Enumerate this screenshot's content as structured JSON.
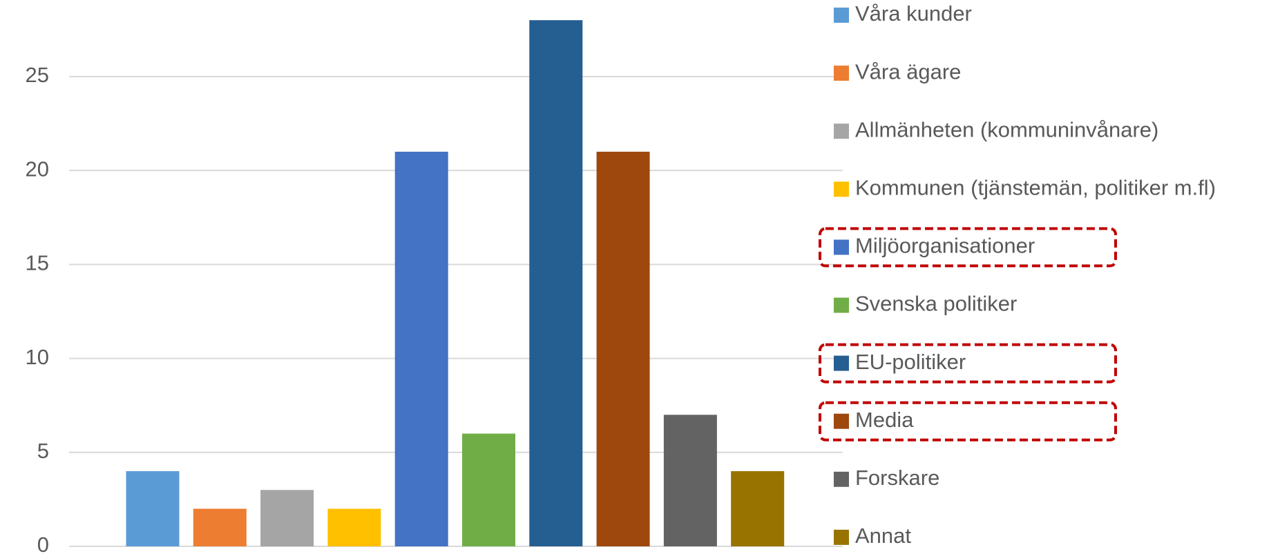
{
  "chart_data": {
    "type": "bar",
    "series": [
      {
        "name": "Våra kunder",
        "color": "#5b9bd5",
        "values": [
          4
        ]
      },
      {
        "name": "Våra ägare",
        "color": "#ed7d31",
        "values": [
          2
        ]
      },
      {
        "name": "Allmänheten (kommuninvånare)",
        "color": "#a5a5a5",
        "values": [
          3
        ]
      },
      {
        "name": "Kommunen (tjänstemän, politiker m.fl)",
        "color": "#ffc000",
        "values": [
          2
        ]
      },
      {
        "name": "Miljöorganisationer",
        "color": "#4472c4",
        "values": [
          21
        ]
      },
      {
        "name": "Svenska politiker",
        "color": "#70ad47",
        "values": [
          6
        ]
      },
      {
        "name": "EU-politiker",
        "color": "#255e91",
        "values": [
          28
        ]
      },
      {
        "name": "Media",
        "color": "#9e480e",
        "values": [
          21
        ]
      },
      {
        "name": "Forskare",
        "color": "#636363",
        "values": [
          7
        ]
      },
      {
        "name": "Annat",
        "color": "#997300",
        "values": [
          4
        ]
      }
    ],
    "ylim": [
      0,
      29
    ],
    "yticks": [
      0,
      5,
      10,
      15,
      20,
      25
    ],
    "grid": true,
    "legend": "right",
    "highlighted_series": [
      4,
      6,
      7
    ],
    "highlight_color": "#c00000"
  }
}
